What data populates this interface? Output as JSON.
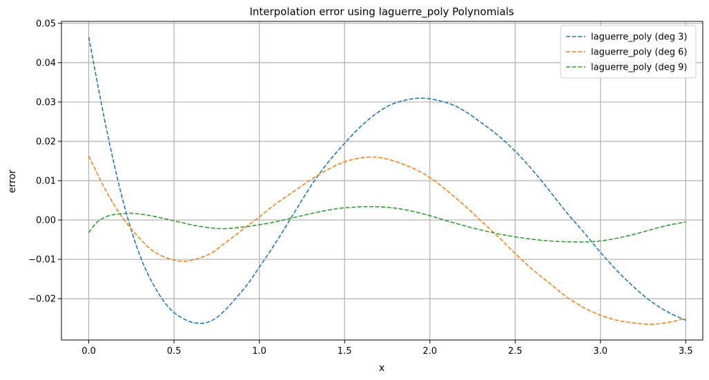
{
  "chart_data": {
    "type": "line",
    "title": "Interpolation error using laguerre_poly Polynomials",
    "xlabel": "x",
    "ylabel": "error",
    "xlim": [
      -0.16,
      3.6
    ],
    "ylim": [
      -0.0305,
      0.0505
    ],
    "xticks": [
      0.0,
      0.5,
      1.0,
      1.5,
      2.0,
      2.5,
      3.0,
      3.5
    ],
    "xtick_labels": [
      "0.0",
      "0.5",
      "1.0",
      "1.5",
      "2.0",
      "2.5",
      "3.0",
      "3.5"
    ],
    "yticks": [
      -0.02,
      -0.01,
      0.0,
      0.01,
      0.02,
      0.03,
      0.04,
      0.05
    ],
    "ytick_labels": [
      "−0.02",
      "−0.01",
      "0.00",
      "0.01",
      "0.02",
      "0.03",
      "0.04",
      "0.05"
    ],
    "grid": true,
    "legend_position": "top-right",
    "line_style": "dashed",
    "series": [
      {
        "name": "laguerre_poly (deg 3)",
        "color": "#1f77b4",
        "x": [
          0.0,
          0.1,
          0.2,
          0.3,
          0.4,
          0.5,
          0.63,
          0.75,
          0.9,
          1.0,
          1.1,
          1.2,
          1.3,
          1.4,
          1.5,
          1.6,
          1.7,
          1.8,
          1.95,
          2.1,
          2.2,
          2.3,
          2.4,
          2.5,
          2.6,
          2.7,
          2.8,
          2.9,
          3.0,
          3.1,
          3.2,
          3.3,
          3.4,
          3.5
        ],
        "y": [
          0.0465,
          0.024,
          0.005,
          -0.009,
          -0.018,
          -0.0235,
          -0.0262,
          -0.0248,
          -0.018,
          -0.012,
          -0.0055,
          0.0015,
          0.0085,
          0.0145,
          0.0195,
          0.024,
          0.0275,
          0.0298,
          0.031,
          0.0298,
          0.0278,
          0.0248,
          0.0215,
          0.0175,
          0.0128,
          0.0075,
          0.002,
          -0.003,
          -0.0082,
          -0.013,
          -0.0172,
          -0.0208,
          -0.0235,
          -0.0255
        ]
      },
      {
        "name": "laguerre_poly (deg 6)",
        "color": "#ff7f0e",
        "x": [
          0.0,
          0.1,
          0.2,
          0.3,
          0.4,
          0.55,
          0.7,
          0.8,
          0.9,
          1.0,
          1.1,
          1.2,
          1.3,
          1.4,
          1.5,
          1.63,
          1.75,
          1.9,
          2.0,
          2.1,
          2.2,
          2.3,
          2.4,
          2.5,
          2.6,
          2.7,
          2.8,
          2.9,
          3.0,
          3.1,
          3.2,
          3.3,
          3.4,
          3.5
        ],
        "y": [
          0.0163,
          0.0075,
          0.0005,
          -0.0047,
          -0.0085,
          -0.0105,
          -0.0088,
          -0.0058,
          -0.0025,
          0.0008,
          0.0042,
          0.0072,
          0.0102,
          0.0128,
          0.0148,
          0.016,
          0.0155,
          0.0132,
          0.0108,
          0.0075,
          0.0038,
          -0.0002,
          -0.0042,
          -0.0085,
          -0.0125,
          -0.016,
          -0.0195,
          -0.0222,
          -0.0242,
          -0.0255,
          -0.0262,
          -0.0265,
          -0.026,
          -0.025
        ]
      },
      {
        "name": "laguerre_poly (deg 9)",
        "color": "#2ca02c",
        "x": [
          0.0,
          0.05,
          0.1,
          0.15,
          0.25,
          0.35,
          0.45,
          0.55,
          0.65,
          0.78,
          0.9,
          1.0,
          1.1,
          1.2,
          1.3,
          1.4,
          1.5,
          1.65,
          1.8,
          1.95,
          2.1,
          2.25,
          2.4,
          2.55,
          2.7,
          2.88,
          3.0,
          3.1,
          3.2,
          3.3,
          3.4,
          3.5
        ],
        "y": [
          -0.0032,
          -0.0005,
          0.0008,
          0.0014,
          0.0017,
          0.0012,
          0.0003,
          -0.0007,
          -0.0016,
          -0.0022,
          -0.0018,
          -0.0012,
          -0.0004,
          0.0006,
          0.0016,
          0.0025,
          0.0031,
          0.0034,
          0.003,
          0.0017,
          -0.0002,
          -0.002,
          -0.0035,
          -0.0046,
          -0.0053,
          -0.0056,
          -0.0053,
          -0.0046,
          -0.0036,
          -0.0024,
          -0.0013,
          -0.0005
        ]
      }
    ]
  }
}
